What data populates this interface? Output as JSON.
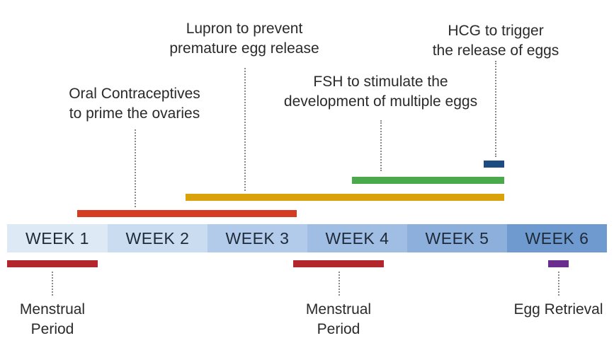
{
  "weeks": [
    "WEEK 1",
    "WEEK 2",
    "WEEK 3",
    "WEEK 4",
    "WEEK 5",
    "WEEK 6"
  ],
  "week_colors": [
    "#dde9f5",
    "#c9dcf0",
    "#b3cbea",
    "#a0bde4",
    "#8cafdc",
    "#6f9ad0"
  ],
  "medications": {
    "oral_contraceptives": {
      "line1": "Oral Contraceptives",
      "line2": "to prime the ovaries",
      "color": "#d63c22"
    },
    "lupron": {
      "line1": "Lupron to prevent",
      "line2": "premature egg release",
      "color": "#d9a10a"
    },
    "fsh": {
      "line1": "FSH to stimulate the",
      "line2": "development of multiple eggs",
      "color": "#4aa94a"
    },
    "hcg": {
      "line1": "HCG to trigger",
      "line2": "the release of eggs",
      "color": "#1c4c82"
    }
  },
  "events": {
    "menstrual_1": {
      "line1": "Menstrual",
      "line2": "Period",
      "color": "#b3262c"
    },
    "menstrual_2": {
      "line1": "Menstrual",
      "line2": "Period",
      "color": "#b3262c"
    },
    "egg_retrieval": {
      "line1": "Egg Retrieval",
      "color": "#6a2c8e"
    }
  }
}
